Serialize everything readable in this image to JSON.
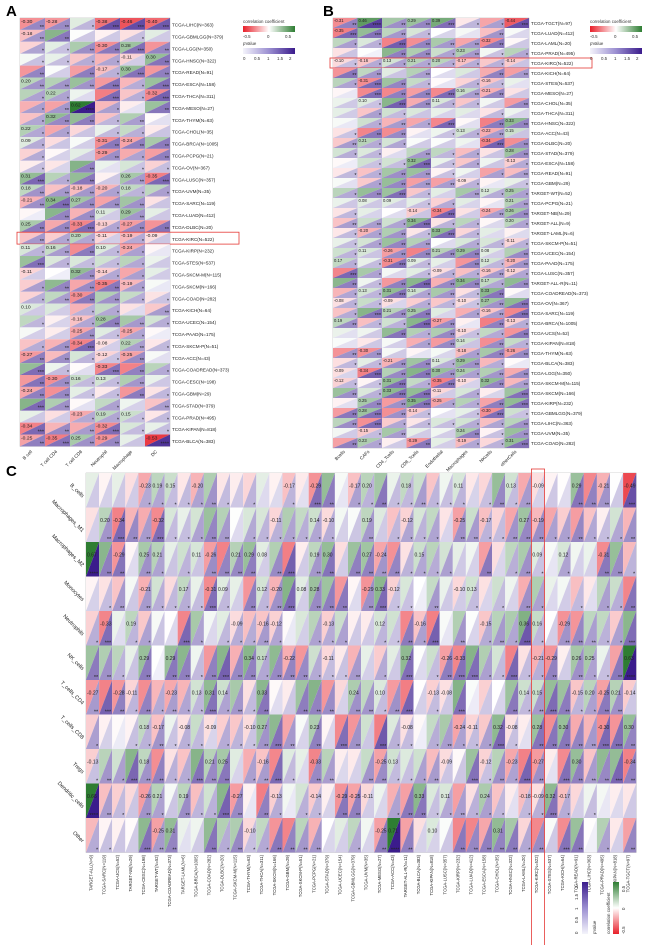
{
  "panels": {
    "A": {
      "letter": "A",
      "rows": [
        "TCGA-LIHC(N=363)",
        "TCGA-GBMLGG(N=379)",
        "TCGA-LGG(N=350)",
        "TCGA-HNSC(N=322)",
        "TCGA-READ(N=91)",
        "TCGA-ESCA(N=158)",
        "TCGA-THCA(N=311)",
        "TCGA-MESO(N=27)",
        "TCGA-THYM(N=63)",
        "TCGA-CHOL(N=35)",
        "TCGA-BRCA(N=1005)",
        "TCGA-PCPG(N=21)",
        "TCGA-OV(N=367)",
        "TCGA-LUSC(N=357)",
        "TCGA-UVM(N=35)",
        "TCGA-SARC(N=119)",
        "TCGA-LUAD(N=412)",
        "TCGA-DLBC(N=20)",
        "TCGA-KIRC(N=522)",
        "TCGA-KIRP(N=232)",
        "TCGA-STES(N=537)",
        "TCGA-SKCM-M(N=115)",
        "TCGA-SKCM(N=166)",
        "TCGA-COAD(N=282)",
        "TCGA-KICH(N=64)",
        "TCGA-UCEC(N=154)",
        "TCGA-PAAD(N=175)",
        "TCGA-SKCM-P(N=51)",
        "TCGA-ACC(N=43)",
        "TCGA-COADREAD(N=373)",
        "TCGA-CESC(N=198)",
        "TCGA-GBM(N=29)",
        "TCGA-STAD(N=379)",
        "TCGA-PRAD(N=495)",
        "TCGA-KIPAN(N=818)",
        "TCGA-BLCA(N=383)"
      ],
      "cols": [
        "B cell",
        "T cell CD4",
        "T cell CD8",
        "Neutrophil",
        "Macrophage",
        "DC"
      ],
      "highlight_row": "TCGA-KIRC(N=522)"
    },
    "B": {
      "letter": "B",
      "rows": [
        "TCGA-TGCT(N=97)",
        "TCGA-LUAD(N=412)",
        "TCGA-LAML(N=20)",
        "TCGA-PRAD(N=495)",
        "TCGA-KIRC(N=522)",
        "TCGA-KICH(N=64)",
        "TCGA-STES(N=537)",
        "TCGA-MESO(N=27)",
        "TCGA-CHOL(N=35)",
        "TCGA-THCA(N=311)",
        "TCGA-HNSC(N=322)",
        "TCGA-ACC(N=43)",
        "TCGA-DLBC(N=20)",
        "TCGA-STAD(N=379)",
        "TCGA-ESCA(N=158)",
        "TCGA-READ(N=91)",
        "TCGA-GBM(N=29)",
        "TARGET-WT(N=52)",
        "TCGA-PCPG(N=21)",
        "TARGET-NB(N=29)",
        "TARGET-ALL(N=9)",
        "TARGET-LAML(N=6)",
        "TCGA-SKCM-P(N=51)",
        "TCGA-UCEC(N=154)",
        "TCGA-PAAD(N=175)",
        "TCGA-LUSC(N=357)",
        "TARGET-ALL-R(N=11)",
        "TCGA-COADREAD(N=373)",
        "TCGA-OV(N=367)",
        "TCGA-SARC(N=119)",
        "TCGA-BRCA(N=1005)",
        "TCGA-UCS(N=52)",
        "TCGA-KIPAN(N=818)",
        "TCGA-THYM(N=63)",
        "TCGA-BLCA(N=383)",
        "TCGA-LGG(N=350)",
        "TCGA-SKCM-M(N=115)",
        "TCGA-SKCM(N=166)",
        "TCGA-KIRP(N=232)",
        "TCGA-GBMLGG(N=379)",
        "TCGA-LIHC(N=363)",
        "TCGA-UVM(N=35)",
        "TCGA-COAD(N=282)"
      ],
      "cols": [
        "Bcells",
        "CAFs",
        "CD4_Tcells",
        "CD8_Tcells",
        "Endothelial",
        "Macrophages",
        "NKcells",
        "otherCells"
      ],
      "highlight_row": "TCGA-KIRC(N=522)"
    },
    "C": {
      "letter": "C",
      "rows": [
        "B_cells",
        "Macrophages_M1",
        "Macrophages_M2",
        "Monocytes",
        "Neutrophils",
        "NK_cells",
        "T_cells_CD4",
        "T_cells_CD8",
        "Tregs",
        "Dendritic_cells",
        "Other"
      ],
      "cols": [
        "TARGET-ALL(N=9)",
        "TCGA-SARC(N=119)",
        "TCGA-UCS(N=52)",
        "TARGET-NB(N=29)",
        "TCGA-CESC(N=198)",
        "TARGET-WT(N=52)",
        "TCGA-COADREAD(N=373)",
        "TARGET-LAML(N=6)",
        "TCGA-BRCA(N=1005)",
        "TCGA-COAD(N=282)",
        "TCGA-DLBC(N=20)",
        "TCGA-SKCM-M(N=115)",
        "TCGA-THYM(N=63)",
        "TCGA-THCA(N=311)",
        "TCGA-SKCM(N=166)",
        "TCGA-GBM(N=29)",
        "TCGA-SKCM-P(N=51)",
        "TCGA-PCPG(N=21)",
        "TCGA-STAD(N=379)",
        "TCGA-UCEC(N=154)",
        "TCGA-GBMLGG(N=379)",
        "TCGA-UVM(N=35)",
        "TCGA-MESO(N=27)",
        "TCGA-ACC(N=43)",
        "TARGET-ALL-R(N=11)",
        "TCGA-BLCA(N=383)",
        "TCGA-KIPAN(N=818)",
        "TCGA-LUSC(N=357)",
        "TCGA-KIRP(N=232)",
        "TCGA-LUAD(N=412)",
        "TCGA-ESCA(N=158)",
        "TCGA-CHOL(N=35)",
        "TCGA-HNSC(N=322)",
        "TCGA-LAML(N=20)",
        "TCGA-KIRC(N=522)",
        "TCGA-STES(N=537)",
        "TCGA-KICH(N=64)",
        "TCGA-READ(N=91)",
        "TCGA-LIHC(N=363)",
        "TCGA-PRAD(N=495)",
        "TCGA-KIPAN(N=818)",
        "TCGA-TGCT(N=97)"
      ],
      "highlight_col": "TCGA-KIRC(N=522)"
    }
  },
  "legend": {
    "corr_title": "correlation coefficient",
    "corr_ticks": [
      "-0.5",
      "0",
      "0.5"
    ],
    "p_title": "pValue",
    "p_ticks": [
      "0",
      "0.5",
      "1",
      "1.5",
      "2"
    ],
    "colors": {
      "negative": "#e8202a",
      "neutral": "#ffffff",
      "positive": "#2e7d32",
      "p_low": "#eeeef8",
      "p_high": "#3b1c8c"
    }
  },
  "chart_data": [
    {
      "type": "heatmap",
      "panel": "A",
      "encoding": "upper triangle = correlation coefficient, lower triangle = pValue (-log10), stars = significance",
      "rows": "panels.A.rows",
      "cols": "panels.A.cols",
      "value_range_corr": [
        -1,
        1
      ],
      "value_range_p": [
        0,
        2
      ],
      "sample_labels": [
        {
          "row": "TCGA-LIHC(N=363)",
          "col": "B cell",
          "value": -0.3
        },
        {
          "row": "TCGA-LIHC(N=363)",
          "col": "T cell CD4",
          "value": -0.28
        },
        {
          "row": "TCGA-LIHC(N=363)",
          "col": "Neutrophil",
          "value": -0.38
        },
        {
          "row": "TCGA-LIHC(N=363)",
          "col": "Macrophage",
          "value": -0.46
        },
        {
          "row": "TCGA-LIHC(N=363)",
          "col": "DC",
          "value": -0.4
        },
        {
          "row": "TCGA-MESO(N=27)",
          "col": "T cell CD8",
          "value": 0.62
        },
        {
          "row": "TCGA-KIRC(N=522)",
          "col": "Neutrophil",
          "value": -0.11
        },
        {
          "row": "TCGA-KIRC(N=522)",
          "col": "Macrophage",
          "value": -0.19
        },
        {
          "row": "TCGA-KIRC(N=522)",
          "col": "DC",
          "value": -0.09
        },
        {
          "row": "TCGA-BLCA(N=383)",
          "col": "B cell",
          "value": -0.25
        },
        {
          "row": "TCGA-BLCA(N=383)",
          "col": "T cell CD4",
          "value": -0.35
        },
        {
          "row": "TCGA-BLCA(N=383)",
          "col": "Neutrophil",
          "value": -0.29
        },
        {
          "row": "TCGA-BLCA(N=383)",
          "col": "DC",
          "value": -0.53
        }
      ]
    },
    {
      "type": "heatmap",
      "panel": "B",
      "encoding": "upper triangle = correlation coefficient, lower triangle = pValue (-log10), stars = significance",
      "rows": "panels.B.rows",
      "cols": "panels.B.cols",
      "value_range_corr": [
        -1,
        1
      ],
      "value_range_p": [
        0,
        2
      ],
      "sample_labels": [
        {
          "row": "TCGA-TGCT(N=97)",
          "col": "Bcells",
          "value": -0.31
        },
        {
          "row": "TCGA-TGCT(N=97)",
          "col": "CAFs",
          "value": 0.46
        },
        {
          "row": "TCGA-TGCT(N=97)",
          "col": "Endothelial",
          "value": 0.39
        },
        {
          "row": "TCGA-TGCT(N=97)",
          "col": "otherCells",
          "value": -0.44
        },
        {
          "row": "TCGA-KIRC(N=522)",
          "col": "Bcells",
          "value": -0.1
        },
        {
          "row": "TCGA-KIRC(N=522)",
          "col": "CAFs",
          "value": -0.16
        },
        {
          "row": "TCGA-KIRC(N=522)",
          "col": "CD4_Tcells",
          "value": 0.13
        },
        {
          "row": "TCGA-KIRC(N=522)",
          "col": "Endothelial",
          "value": 0.2
        },
        {
          "row": "TCGA-KIRC(N=522)",
          "col": "Macrophages",
          "value": -0.17
        },
        {
          "row": "TCGA-KIRC(N=522)",
          "col": "otherCells",
          "value": -0.14
        },
        {
          "row": "TARGET-LAML(N=6)",
          "col": "Endothelial",
          "value": 0.33
        }
      ]
    },
    {
      "type": "heatmap",
      "panel": "C",
      "encoding": "upper triangle = correlation coefficient, lower triangle = pValue (-log10), stars = significance",
      "rows": "panels.C.rows",
      "cols": "panels.C.cols",
      "value_range_corr": [
        -1,
        1
      ],
      "value_range_p": [
        0,
        2
      ],
      "sample_labels": [
        {
          "row": "B_cells",
          "col": "TCGA-TGCT(N=97)",
          "value": -0.49
        },
        {
          "row": "Macrophages_M2",
          "col": "TARGET-ALL(N=9)",
          "value": 0.67
        },
        {
          "row": "Neutrophils",
          "col": "TCGA-LAML(N=20)",
          "value": 0.36
        },
        {
          "row": "NK_cells",
          "col": "TCGA-TGCT(N=97)",
          "value": 0.63
        },
        {
          "row": "Dendritic_cells",
          "col": "TARGET-ALL(N=9)",
          "value": 0.66
        },
        {
          "row": "Other",
          "col": "TCGA-ACC(N=43)",
          "value": 0.71
        },
        {
          "row": "B_cells",
          "col": "TCGA-KIRC(N=522)",
          "value": -0.09
        },
        {
          "row": "Macrophages_M1",
          "col": "TCGA-KIRC(N=522)",
          "value": -0.19
        },
        {
          "row": "Macrophages_M2",
          "col": "TCGA-KIRC(N=522)",
          "value": 0.09
        },
        {
          "row": "Neutrophils",
          "col": "TCGA-KIRC(N=522)",
          "value": 0.16
        },
        {
          "row": "T_cells_CD4",
          "col": "TCGA-KIRC(N=522)",
          "value": 0.15
        },
        {
          "row": "Tregs",
          "col": "TCGA-KIRC(N=522)",
          "value": -0.27
        },
        {
          "row": "Dendritic_cells",
          "col": "TCGA-KIRC(N=522)",
          "value": -0.09
        }
      ]
    }
  ]
}
